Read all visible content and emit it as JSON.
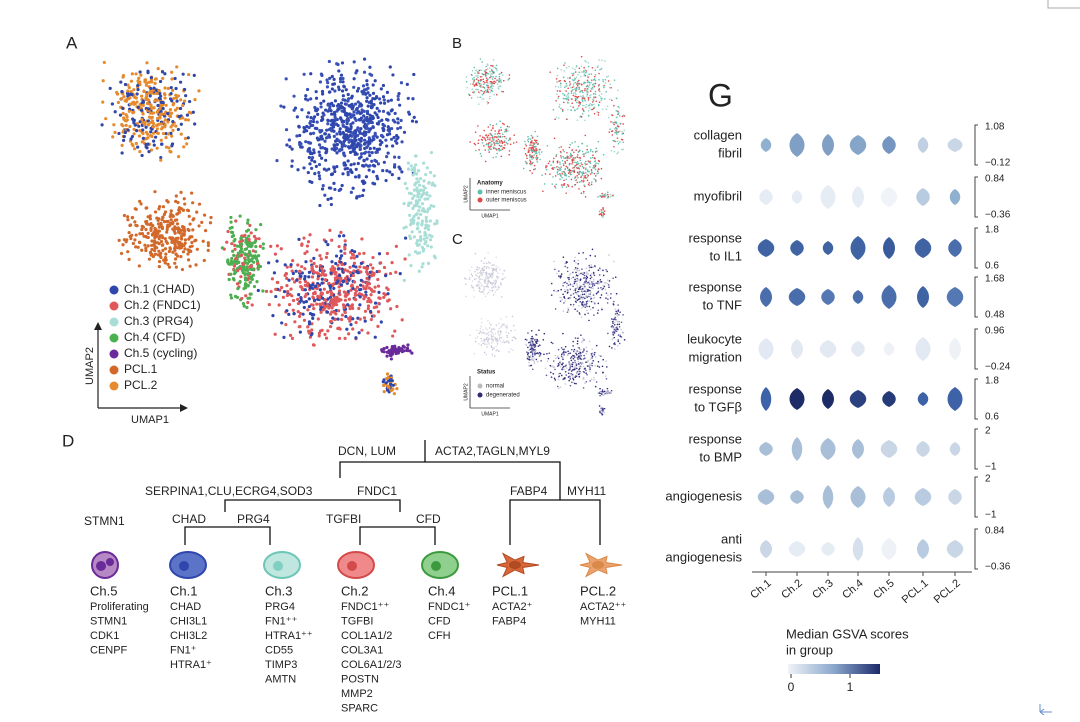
{
  "panels": {
    "a": "A",
    "b": "B",
    "c": "C",
    "d": "D",
    "g": "G"
  },
  "umap": {
    "legend": [
      "Ch.1 (CHAD)",
      "Ch.2 (FNDC1)",
      "Ch.3 (PRG4)",
      "Ch.4 (CFD)",
      "Ch.5 (cycling)",
      "PCL.1",
      "PCL.2"
    ],
    "x_axis": "UMAP1",
    "y_axis": "UMAP2"
  },
  "anatomy": {
    "title": "Anatomy",
    "legend": [
      "inner meniscus",
      "outer meniscus"
    ],
    "x_axis": "UMAP1",
    "y_axis": "UMAP2"
  },
  "status": {
    "title": "Status",
    "legend": [
      "normal",
      "degenerated"
    ],
    "x_axis": "UMAP1",
    "y_axis": "UMAP2"
  },
  "tree": {
    "dcn": "DCN,  LUM",
    "acta2": "ACTA2,TAGLN,MYL9",
    "serpina1": "SERPINA1,CLU,ECRG4,SOD3",
    "fndc1": "FNDC1",
    "fabp4": "FABP4",
    "myh11": "MYH11",
    "stmn1": "STMN1",
    "chad": "CHAD",
    "prg4": "PRG4",
    "tgfbi": "TGFBI",
    "cfd": "CFD"
  },
  "cells": [
    {
      "name": "Ch.5",
      "markers": [
        "Proliferating",
        "STMN1",
        "CDK1",
        "CENPF"
      ]
    },
    {
      "name": "Ch.1",
      "markers": [
        "CHAD",
        "CHI3L1",
        "CHI3L2",
        "FN1⁺",
        "HTRA1⁺"
      ]
    },
    {
      "name": "Ch.3",
      "markers": [
        "PRG4",
        "FN1⁺⁺",
        "HTRA1⁺⁺",
        "CD55",
        "TIMP3",
        "AMTN"
      ]
    },
    {
      "name": "Ch.2",
      "markers": [
        "FNDC1⁺⁺",
        "TGFBI",
        "COL1A1/2",
        "COL3A1",
        "COL6A1/2/3",
        "POSTN",
        "MMP2",
        "SPARC"
      ]
    },
    {
      "name": "Ch.4",
      "markers": [
        "FNDC1⁺",
        "CFD",
        "CFH"
      ]
    },
    {
      "name": "PCL.1",
      "markers": [
        "ACTA2⁺",
        "FABP4"
      ]
    },
    {
      "name": "PCL.2",
      "markers": [
        "ACTA2⁺⁺",
        "MYH11"
      ]
    }
  ],
  "gsva": {
    "rows": [
      {
        "label": [
          "collagen",
          "fibril"
        ],
        "max": "1.08",
        "min": "−0.12"
      },
      {
        "label": [
          "myofibril"
        ],
        "max": "0.84",
        "min": "−0.36"
      },
      {
        "label": [
          "response",
          "to IL1"
        ],
        "max": "1.8",
        "min": "0.6"
      },
      {
        "label": [
          "response",
          "to TNF"
        ],
        "max": "1.68",
        "min": "0.48"
      },
      {
        "label": [
          "leukocyte",
          "migration"
        ],
        "max": "0.96",
        "min": "−0.24"
      },
      {
        "label": [
          "response",
          "to TGFβ"
        ],
        "max": "1.8",
        "min": "0.6"
      },
      {
        "label": [
          "response",
          "to BMP"
        ],
        "max": "2",
        "min": "−1"
      },
      {
        "label": [
          "angiogenesis"
        ],
        "max": "2",
        "min": "−1"
      },
      {
        "label": [
          "anti",
          "angiogenesis"
        ],
        "max": "0.84",
        "min": "−0.36"
      }
    ],
    "categories": [
      "Ch.1",
      "Ch.2",
      "Ch.3",
      "Ch.4",
      "Ch.5",
      "PCL.1",
      "PCL.2"
    ],
    "colorbar": {
      "title": [
        "Median GSVA scores",
        "in group"
      ],
      "ticks": [
        "0",
        "1"
      ]
    }
  }
}
